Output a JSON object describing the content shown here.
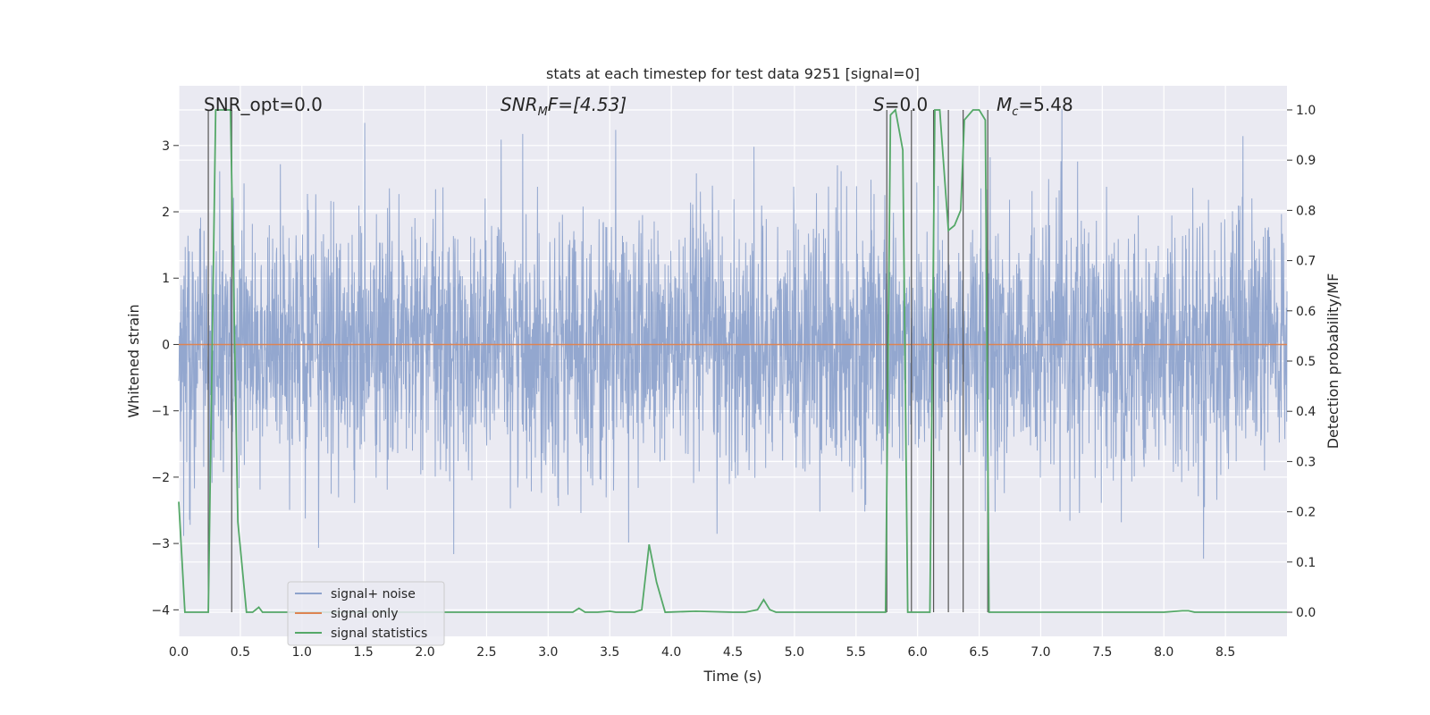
{
  "chart_data": {
    "type": "line",
    "title": "stats at each timestep for test data 9251 [signal=0]",
    "xlabel": "Time (s)",
    "ylabel": "Whitened strain",
    "y2label": "Detection probability/MF",
    "xlim": [
      0,
      9
    ],
    "ylim": [
      -4.4,
      3.9
    ],
    "y2lim": [
      -0.048,
      1.048
    ],
    "xticks": [
      "0.0",
      "0.5",
      "1.0",
      "1.5",
      "2.0",
      "2.5",
      "3.0",
      "3.5",
      "4.0",
      "4.5",
      "5.0",
      "5.5",
      "6.0",
      "6.5",
      "7.0",
      "7.5",
      "8.0",
      "8.5"
    ],
    "yticks": [
      "3",
      "2",
      "1",
      "0",
      "−1",
      "−2",
      "−3",
      "−4"
    ],
    "y2ticks": [
      "1.0",
      "0.9",
      "0.8",
      "0.7",
      "0.6",
      "0.5",
      "0.4",
      "0.3",
      "0.2",
      "0.1",
      "0.0"
    ],
    "grid": true,
    "legend_position": "lower-left",
    "colors": {
      "background": "#eaeaf2",
      "grid": "#ffffff",
      "noise": "#8ea3cc",
      "signal": "#dd8452",
      "stats": "#55a868",
      "vline": "#555555"
    },
    "annotations": {
      "snr_opt": "SNR_opt=0.0",
      "snr_mf_base": "SNR",
      "snr_mf_sub": "M",
      "snr_mf_rest": "F=[4.53]",
      "s_base": "S",
      "s_rest": "=0.0",
      "mc_base": "M",
      "mc_sub": "c",
      "mc_rest": "=5.48"
    },
    "series": [
      {
        "name": "signal+ noise",
        "description": "whitened noise, approx. std 1.0, range about -3.4 to 3.6"
      },
      {
        "name": "signal only",
        "x": [
          0,
          9
        ],
        "y": [
          0,
          0
        ]
      },
      {
        "name": "signal statistics",
        "axis": "right",
        "x": [
          0.0,
          0.05,
          0.2,
          0.24,
          0.3,
          0.32,
          0.4,
          0.42,
          0.48,
          0.55,
          0.6,
          0.65,
          0.68,
          0.75,
          0.9,
          1.5,
          2.0,
          2.5,
          3.0,
          3.2,
          3.25,
          3.3,
          3.4,
          3.5,
          3.55,
          3.6,
          3.7,
          3.76,
          3.82,
          3.88,
          3.95,
          4.2,
          4.5,
          4.6,
          4.7,
          4.75,
          4.8,
          4.85,
          5.0,
          5.5,
          5.74,
          5.78,
          5.82,
          5.88,
          5.92,
          5.95,
          6.0,
          6.1,
          6.14,
          6.18,
          6.25,
          6.3,
          6.35,
          6.38,
          6.45,
          6.5,
          6.55,
          6.58,
          6.64,
          7.0,
          7.5,
          8.0,
          8.15,
          8.2,
          8.25,
          8.5,
          9.0
        ],
        "y": [
          0.22,
          0.0,
          0.0,
          0.0,
          1.0,
          1.0,
          1.0,
          1.0,
          0.18,
          0.0,
          0.0,
          0.01,
          0.0,
          0.0,
          0.0,
          0.0,
          0.0,
          0.0,
          0.0,
          0.0,
          0.008,
          0.0,
          0.0,
          0.002,
          0.0,
          0.0,
          0.0,
          0.005,
          0.135,
          0.06,
          0.0,
          0.002,
          0.0,
          0.0,
          0.005,
          0.025,
          0.005,
          0.0,
          0.0,
          0.0,
          0.0,
          0.99,
          1.0,
          0.92,
          0.0,
          0.0,
          0.0,
          0.0,
          1.0,
          1.0,
          0.76,
          0.77,
          0.8,
          0.98,
          1.0,
          1.0,
          0.98,
          0.0,
          0.0,
          0.0,
          0.0,
          0.0,
          0.003,
          0.003,
          0.0,
          0.0,
          0.0
        ]
      }
    ],
    "vlines": [
      0.24,
      0.43,
      5.75,
      5.95,
      6.13,
      6.25,
      6.37,
      6.57
    ]
  }
}
